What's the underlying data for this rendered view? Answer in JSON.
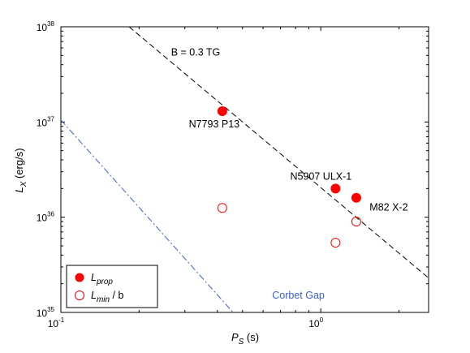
{
  "chart_data": {
    "type": "scatter",
    "x_scale": "log",
    "y_scale": "log",
    "xlabel": {
      "main": "P",
      "sub": "S",
      "unit": "(s)"
    },
    "ylabel": {
      "main": "L",
      "sub": "X",
      "unit": "(erg/s)"
    },
    "xlim": [
      0.1,
      2.6
    ],
    "ylim": [
      1e+35,
      1e+38
    ],
    "x_ticks": [
      {
        "value": 0.1,
        "base": "10",
        "exp": "-1"
      },
      {
        "value": 1,
        "base": "10",
        "exp": "0"
      }
    ],
    "y_ticks": [
      {
        "value": 1e+35,
        "base": "10",
        "exp": "35"
      },
      {
        "value": 1e+36,
        "base": "10",
        "exp": "36"
      },
      {
        "value": 1e+37,
        "base": "10",
        "exp": "37"
      },
      {
        "value": 1e+38,
        "base": "10",
        "exp": "38"
      }
    ],
    "series": [
      {
        "key": "Lprop",
        "marker": "filled-circle",
        "color": "#ff0000",
        "points": [
          {
            "x": 0.418,
            "y": 1.3e+37,
            "label": "N7793 P13"
          },
          {
            "x": 1.14,
            "y": 2e+36,
            "label": "N5907 ULX-1"
          },
          {
            "x": 1.37,
            "y": 1.6e+36,
            "label": "M82 X-2"
          }
        ]
      },
      {
        "key": "Lmin",
        "marker": "open-circle",
        "color": "#ff0000",
        "points": [
          {
            "x": 0.418,
            "y": 1.25e+36
          },
          {
            "x": 1.14,
            "y": 5.4e+35
          },
          {
            "x": 1.37,
            "y": 9e+35
          }
        ]
      }
    ],
    "lines": [
      {
        "key": "b-line",
        "style": "dashed",
        "color": "#000000",
        "points": [
          [
            0.183,
            1e+38
          ],
          [
            2.6,
            2.3e+35
          ]
        ],
        "label": {
          "text": "B = 0.3 TG",
          "at": [
            0.33,
            5e+37
          ]
        }
      },
      {
        "key": "corbet-line",
        "style": "dash-dot",
        "color": "#3a5fcd",
        "points": [
          [
            0.1,
            1.05e+37
          ],
          [
            0.46,
            1e+35
          ]
        ]
      }
    ],
    "annotations": [
      {
        "text": "Corbet  Gap",
        "at": [
          0.82,
          1.4e+35
        ],
        "color": "#3a5fcd"
      }
    ],
    "legend": {
      "position": "bottom-left",
      "entries": [
        {
          "marker": "filled-circle",
          "main": "L",
          "sub": "prop",
          "suffix": ""
        },
        {
          "marker": "open-circle",
          "main": "L",
          "sub": "min",
          "suffix": " / b"
        }
      ]
    },
    "grid": false
  }
}
